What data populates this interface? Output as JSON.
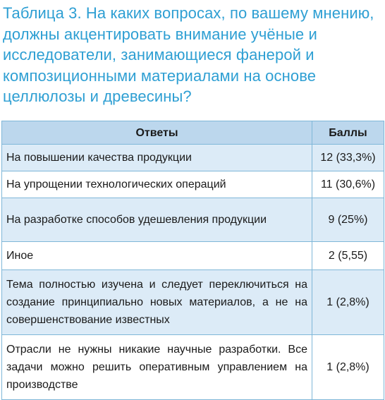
{
  "title": "Таблица 3. На каких вопросах, по вашему мнению, должны акцентировать внимание учёные и исследователи, занимающиеся фанерой и композиционными материалами на основе целлюлозы и древесины?",
  "table": {
    "headers": [
      "Ответы",
      "Баллы"
    ],
    "rows": [
      {
        "answer": "На повышении качества продукции",
        "score": "12 (33,3%)"
      },
      {
        "answer": "На упрощении технологических операций",
        "score": "11 (30,6%)"
      },
      {
        "answer": "На разработке способов удешевления продукции",
        "score": "9 (25%)"
      },
      {
        "answer": "Иное",
        "score": "2 (5,55)"
      },
      {
        "answer": "Тема полностью изучена и следует переключиться на создание принципиально новых материалов, а не на совершенствование известных",
        "score": "1 (2,8%)"
      },
      {
        "answer": "Отрасли не нужны никакие научные разработки. Все задачи можно решить оперативным управлением на производстве",
        "score": "1 (2,8%)"
      }
    ]
  },
  "colors": {
    "title": "#2e9fd3",
    "header_bg": "#bcd7ed",
    "row_shade": "#dcebf7",
    "border": "#7fb7d8"
  }
}
